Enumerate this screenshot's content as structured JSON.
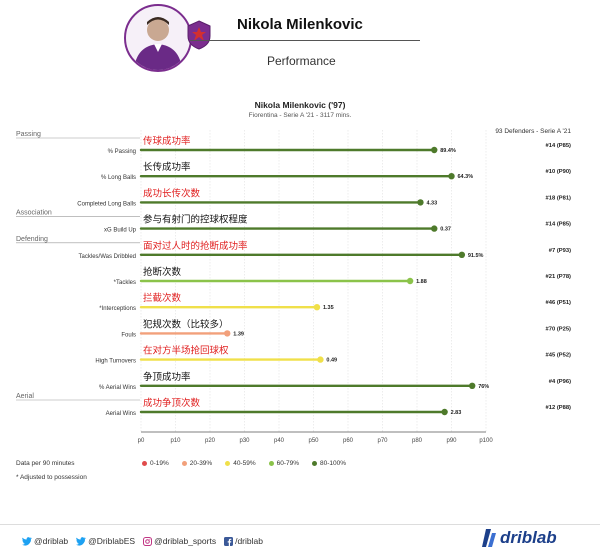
{
  "header": {
    "title": "Nikola Milenkovic",
    "subtitle": "Performance"
  },
  "chart_data": {
    "type": "bar",
    "title": "Nikola Milenkovic ('97)",
    "subtitle": "Fiorentina - Serie A '21 - 3117 mins.",
    "comparison_label": "93 Defenders - Serie A '21",
    "xlim": [
      0,
      100
    ],
    "x_ticks": [
      "p0",
      "p10",
      "p20",
      "p30",
      "p40",
      "p50",
      "p60",
      "p70",
      "p80",
      "p90",
      "p100"
    ],
    "groups": [
      {
        "label": "Passing",
        "before_metric": 0
      },
      {
        "label": "Association",
        "before_metric": 3
      },
      {
        "label": "Defending",
        "before_metric": 4
      },
      {
        "label": "Aerial",
        "before_metric": 10
      }
    ],
    "metrics": [
      {
        "name": "% Passing",
        "annotation": "传球成功率",
        "ann_color": "#e02020",
        "value_label": "89.4%",
        "percentile": 85,
        "rank": "#14 (P85)",
        "color": "#4e7a2b"
      },
      {
        "name": "% Long Balls",
        "annotation": "长传成功率",
        "ann_color": "#111111",
        "value_label": "64.3%",
        "percentile": 90,
        "rank": "#10 (P90)",
        "color": "#4e7a2b"
      },
      {
        "name": "Completed Long Balls",
        "annotation": "成功长传次数",
        "ann_color": "#e02020",
        "value_label": "4.33",
        "percentile": 81,
        "rank": "#18 (P81)",
        "color": "#4e7a2b"
      },
      {
        "name": "xG Build Up",
        "annotation": "参与有射门的控球权程度",
        "ann_color": "#111111",
        "value_label": "0.37",
        "percentile": 85,
        "rank": "#14 (P85)",
        "color": "#4e7a2b"
      },
      {
        "name": "Tackles/Was Dribbled",
        "annotation": "面对过人时的抢断成功率",
        "ann_color": "#e02020",
        "value_label": "91.5%",
        "percentile": 93,
        "rank": "#7 (P93)",
        "color": "#4e7a2b"
      },
      {
        "name": "*Tackles",
        "annotation": "抢断次数",
        "ann_color": "#111111",
        "value_label": "1.88",
        "percentile": 78,
        "rank": "#21 (P78)",
        "color": "#8bc34a"
      },
      {
        "name": "*Interceptions",
        "annotation": "拦截次数",
        "ann_color": "#e02020",
        "value_label": "1.35",
        "percentile": 51,
        "rank": "#46 (P51)",
        "color": "#f0e04a"
      },
      {
        "name": "Fouls",
        "annotation": "犯规次数（比较多）",
        "ann_color": "#111111",
        "value_label": "1.39",
        "percentile": 25,
        "rank": "#70 (P25)",
        "color": "#f2a07b"
      },
      {
        "name": "High Turnovers",
        "annotation": "在对方半场抢回球权",
        "ann_color": "#e02020",
        "value_label": "0.49",
        "percentile": 52,
        "rank": "#45 (P52)",
        "color": "#f0e04a"
      },
      {
        "name": "% Aerial Wins",
        "annotation": "争顶成功率",
        "ann_color": "#111111",
        "value_label": "76%",
        "percentile": 96,
        "rank": "#4 (P96)",
        "color": "#4e7a2b"
      },
      {
        "name": "Aerial Wins",
        "annotation": "成功争顶次数",
        "ann_color": "#e02020",
        "value_label": "2.83",
        "percentile": 88,
        "rank": "#12 (P88)",
        "color": "#4e7a2b"
      }
    ],
    "legend": [
      {
        "label": "0-19%",
        "color": "#e04b4b"
      },
      {
        "label": "20-39%",
        "color": "#f2a07b"
      },
      {
        "label": "40-59%",
        "color": "#f0e04a"
      },
      {
        "label": "60-79%",
        "color": "#8bc34a"
      },
      {
        "label": "80-100%",
        "color": "#4e7a2b"
      }
    ],
    "grid": true
  },
  "footnotes": {
    "per90": "Data per 90 minutes",
    "adjusted": "* Adjusted to possession"
  },
  "footer": {
    "twitter1": "@driblab",
    "twitter2": "@DriblabES",
    "instagram": "@driblab_sports",
    "facebook": "/driblab",
    "brand": "driblab"
  }
}
